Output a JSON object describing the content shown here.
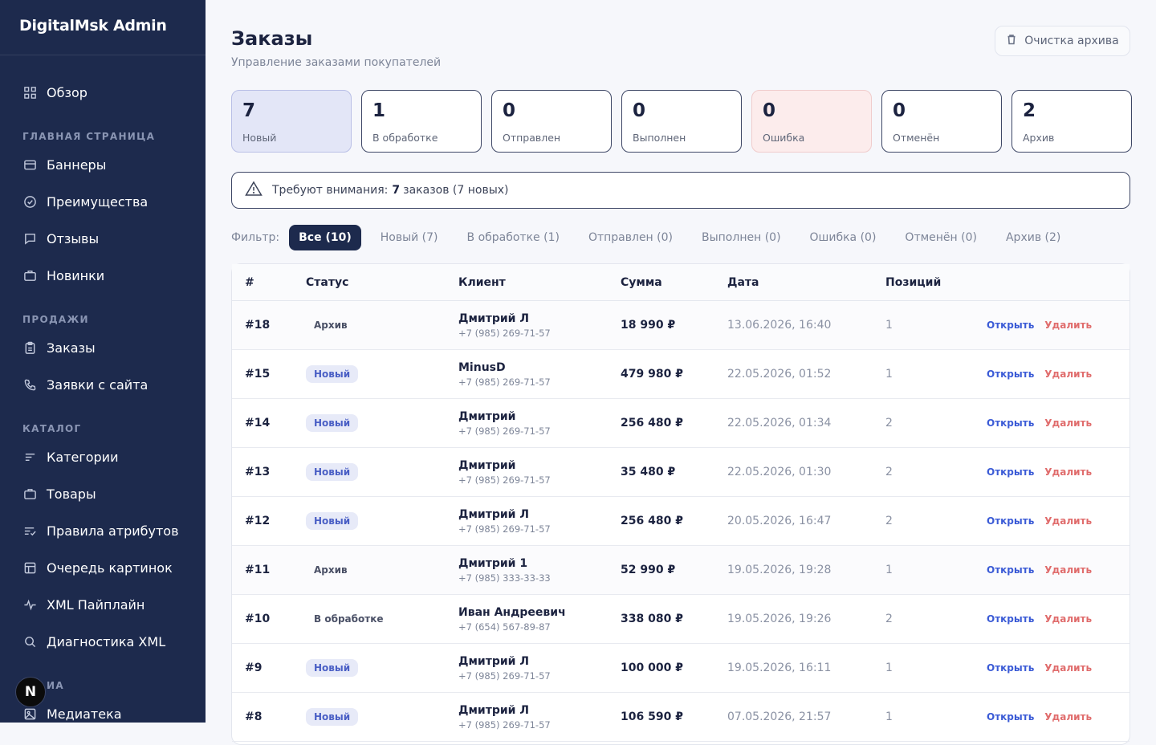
{
  "app": {
    "brand": "DigitalMsk Admin"
  },
  "sidebar": {
    "overview": "Обзор",
    "sections": [
      {
        "title": "ГЛАВНАЯ СТРАНИЦА",
        "items": [
          "Баннеры",
          "Преимущества",
          "Отзывы",
          "Новинки"
        ]
      },
      {
        "title": "ПРОДАЖИ",
        "items": [
          "Заказы",
          "Заявки с сайта"
        ]
      },
      {
        "title": "КАТАЛОГ",
        "items": [
          "Категории",
          "Товары",
          "Правила атрибутов",
          "Очередь картинок",
          "XML Пайплайн",
          "Диагностика XML"
        ]
      },
      {
        "title": "ИА",
        "items": [
          "Медиатека"
        ]
      }
    ],
    "fab_label": "N"
  },
  "header": {
    "title": "Заказы",
    "subtitle": "Управление заказами покупателей",
    "archive_button": "Очистка архива"
  },
  "stats": [
    {
      "value": "7",
      "label": "Новый"
    },
    {
      "value": "1",
      "label": "В обработке"
    },
    {
      "value": "0",
      "label": "Отправлен"
    },
    {
      "value": "0",
      "label": "Выполнен"
    },
    {
      "value": "0",
      "label": "Ошибка"
    },
    {
      "value": "0",
      "label": "Отменён"
    },
    {
      "value": "2",
      "label": "Архив"
    }
  ],
  "alert": {
    "prefix": "Требуют внимания:",
    "count": "7",
    "suffix": "заказов (7 новых)"
  },
  "filters": {
    "label": "Фильтр:",
    "chips": [
      "Все (10)",
      "Новый (7)",
      "В обработке (1)",
      "Отправлен (0)",
      "Выполнен (0)",
      "Ошибка (0)",
      "Отменён (0)",
      "Архив (2)"
    ]
  },
  "table": {
    "headers": [
      "#",
      "Статус",
      "Клиент",
      "Сумма",
      "Дата",
      "Позиций"
    ],
    "open_label": "Открыть",
    "delete_label": "Удалить",
    "rows": [
      {
        "id": "#18",
        "status": "Архив",
        "client": "Дмитрий Л",
        "phone": "+7 (985) 269-71-57",
        "sum": "18 990 ₽",
        "date": "13.06.2026, 16:40",
        "items": "1"
      },
      {
        "id": "#15",
        "status": "Новый",
        "client": "MinusD",
        "phone": "+7 (985) 269-71-57",
        "sum": "479 980 ₽",
        "date": "22.05.2026, 01:52",
        "items": "1"
      },
      {
        "id": "#14",
        "status": "Новый",
        "client": "Дмитрий",
        "phone": "+7 (985) 269-71-57",
        "sum": "256 480 ₽",
        "date": "22.05.2026, 01:34",
        "items": "2"
      },
      {
        "id": "#13",
        "status": "Новый",
        "client": "Дмитрий",
        "phone": "+7 (985) 269-71-57",
        "sum": "35 480 ₽",
        "date": "22.05.2026, 01:30",
        "items": "2"
      },
      {
        "id": "#12",
        "status": "Новый",
        "client": "Дмитрий Л",
        "phone": "+7 (985) 269-71-57",
        "sum": "256 480 ₽",
        "date": "20.05.2026, 16:47",
        "items": "2"
      },
      {
        "id": "#11",
        "status": "Архив",
        "client": "Дмитрий 1",
        "phone": "+7 (985) 333-33-33",
        "sum": "52 990 ₽",
        "date": "19.05.2026, 19:28",
        "items": "1"
      },
      {
        "id": "#10",
        "status": "В обработке",
        "client": "Иван Андреевич",
        "phone": "+7 (654) 567-89-87",
        "sum": "338 080 ₽",
        "date": "19.05.2026, 19:26",
        "items": "2"
      },
      {
        "id": "#9",
        "status": "Новый",
        "client": "Дмитрий Л",
        "phone": "+7 (985) 269-71-57",
        "sum": "100 000 ₽",
        "date": "19.05.2026, 16:11",
        "items": "1"
      },
      {
        "id": "#8",
        "status": "Новый",
        "client": "Дмитрий Л",
        "phone": "+7 (985) 269-71-57",
        "sum": "106 590 ₽",
        "date": "07.05.2026, 21:57",
        "items": "1"
      }
    ]
  },
  "colors": {
    "sidebar": "#1d2a4d",
    "accent": "#3b5bd6",
    "danger": "#e06c6c",
    "badge_new": "#4a5fc5"
  }
}
